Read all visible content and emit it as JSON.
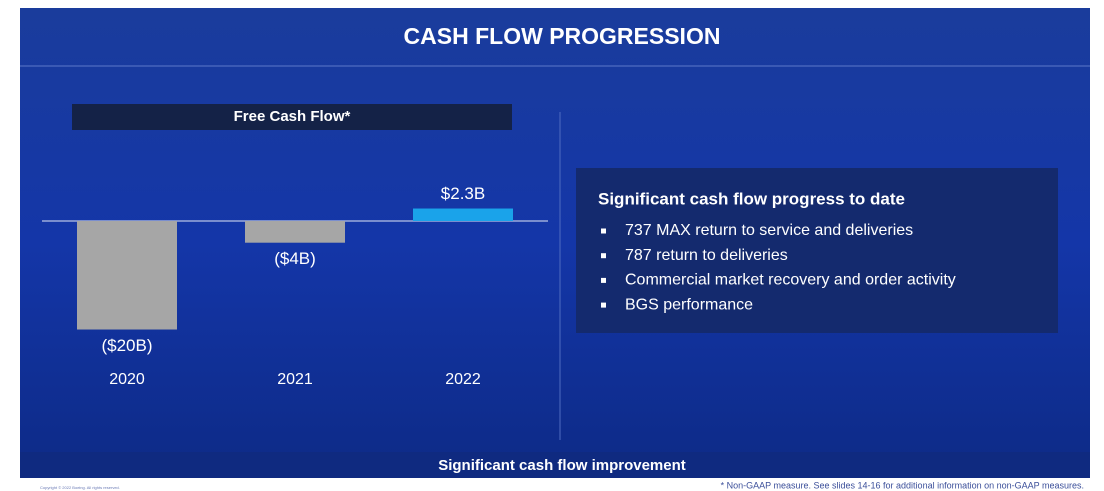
{
  "chart_data": {
    "type": "bar",
    "title": "CASH FLOW PROGRESSION",
    "chart_title": "Free Cash Flow*",
    "categories": [
      "2020",
      "2021",
      "2022"
    ],
    "values": [
      -20,
      -4,
      2.3
    ],
    "value_labels": [
      "($20B)",
      "($4B)",
      "$2.3B"
    ],
    "colors": [
      "#a6a6a6",
      "#a6a6a6",
      "#1aa3ea"
    ],
    "panel": {
      "heading": "Significant cash flow progress to date",
      "bullets": [
        "737 MAX return to service and deliveries",
        "787 return to deliveries",
        "Commercial market recovery and order activity",
        "BGS performance"
      ]
    },
    "banner": "Significant cash flow improvement",
    "footnote": "* Non-GAAP measure. See slides 14-16 for additional information on non-GAAP measures.",
    "copyright": "Copyright © 2022 Boeing. All rights reserved."
  }
}
